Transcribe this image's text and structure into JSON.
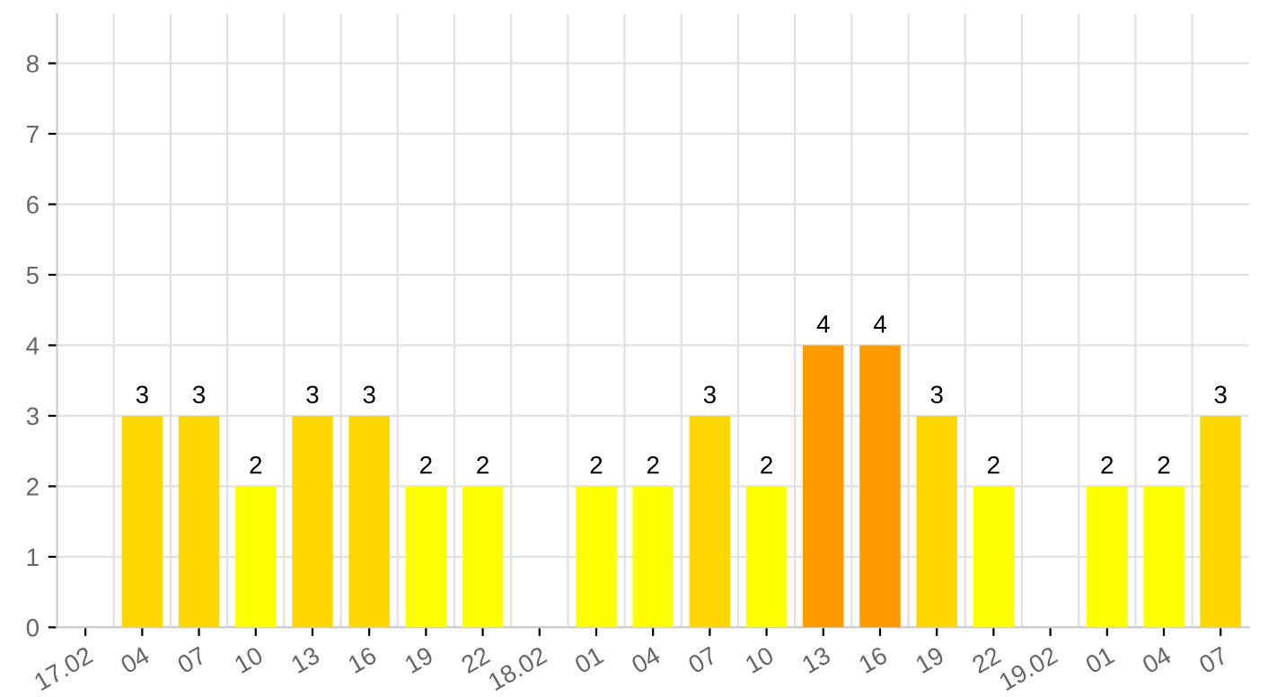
{
  "chart_data": {
    "type": "bar",
    "categories": [
      "17.02",
      "04",
      "07",
      "10",
      "13",
      "16",
      "19",
      "22",
      "18.02",
      "01",
      "04",
      "07",
      "10",
      "13",
      "16",
      "19",
      "22",
      "19.02",
      "01",
      "04",
      "07"
    ],
    "values": [
      null,
      3,
      3,
      2,
      3,
      3,
      2,
      2,
      null,
      2,
      2,
      3,
      2,
      4,
      4,
      3,
      2,
      null,
      2,
      2,
      3
    ],
    "colors": [
      "#ffd700",
      "#ffd700",
      "#ffd700",
      "#ffff00",
      "#ffd700",
      "#ffd700",
      "#ffff00",
      "#ffff00",
      "#ffd700",
      "#ffff00",
      "#ffff00",
      "#ffd700",
      "#ffff00",
      "#ff9900",
      "#ff9900",
      "#ffd700",
      "#ffff00",
      "#ffd700",
      "#ffff00",
      "#ffff00",
      "#ffd700"
    ],
    "ylim": [
      0,
      8.7
    ],
    "yticks": [
      0,
      1,
      2,
      3,
      4,
      5,
      6,
      7,
      8
    ],
    "grid": true,
    "data_labels": true
  }
}
